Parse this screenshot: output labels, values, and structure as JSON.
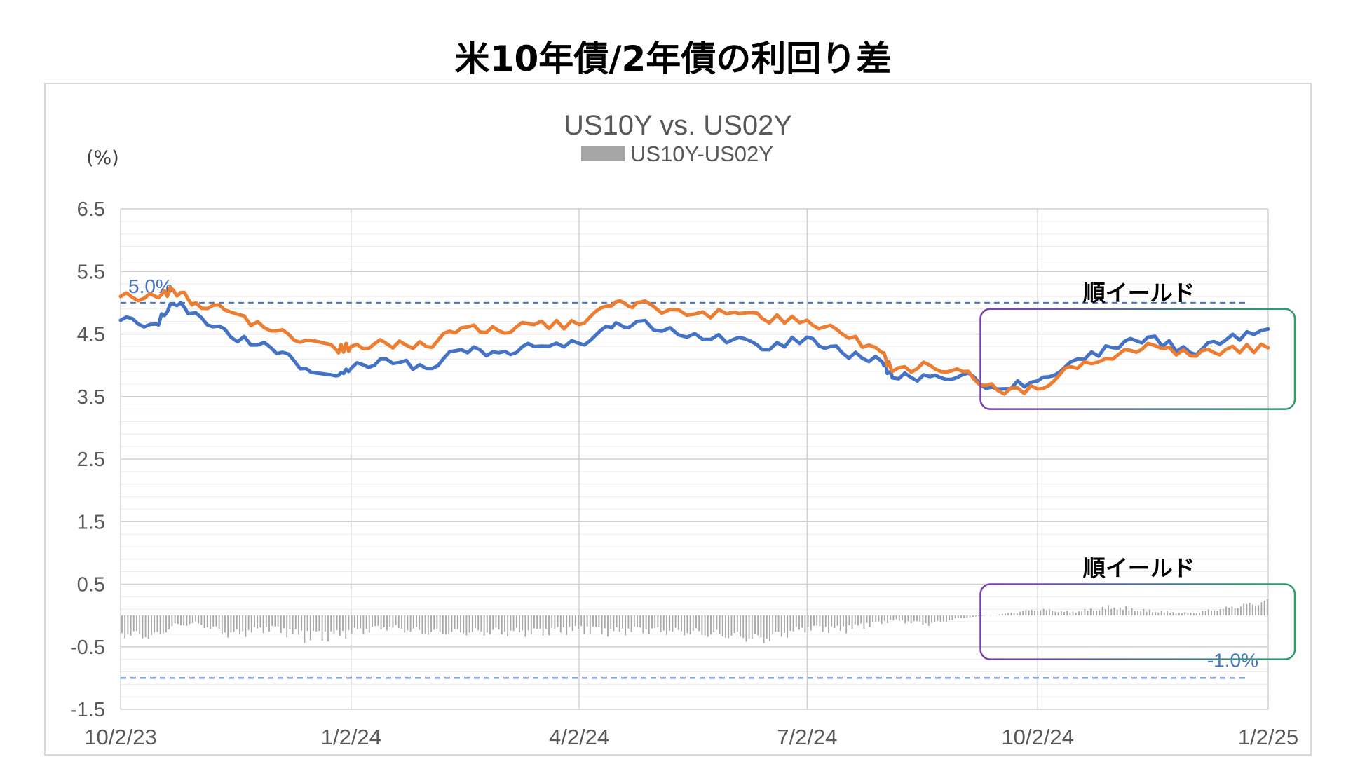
{
  "page_title": "米10年債/2年債の利回り差",
  "chart_data": {
    "type": "line",
    "title": "US10Y vs. US02Y",
    "y_unit": "(%)",
    "ylim": [
      -1.5,
      6.5
    ],
    "y_ticks": [
      "6.5",
      "5.5",
      "4.5",
      "3.5",
      "2.5",
      "1.5",
      "0.5",
      "-0.5",
      "-1.5"
    ],
    "y_tick_values": [
      6.5,
      5.5,
      4.5,
      3.5,
      2.5,
      1.5,
      0.5,
      -0.5,
      -1.5
    ],
    "x_ticks": [
      "10/2/23",
      "1/2/24",
      "4/2/24",
      "7/2/24",
      "10/2/24",
      "1/2/25"
    ],
    "x_tick_values": [
      "2023-10-02",
      "2024-01-02",
      "2024-04-02",
      "2024-07-02",
      "2024-10-02",
      "2025-01-02"
    ],
    "x_range": [
      "2023-10-02",
      "2025-01-02"
    ],
    "grid": true,
    "legend_position": "top",
    "series": [
      {
        "key": "us10y",
        "color": "#4472c4",
        "x": [
          "2023-10-02",
          "2023-10-16",
          "2023-10-23",
          "2023-11-01",
          "2023-11-15",
          "2023-12-01",
          "2023-12-15",
          "2023-12-27",
          "2024-01-02",
          "2024-01-16",
          "2024-02-01",
          "2024-02-15",
          "2024-03-01",
          "2024-03-15",
          "2024-04-02",
          "2024-04-15",
          "2024-04-25",
          "2024-05-15",
          "2024-06-03",
          "2024-06-14",
          "2024-07-02",
          "2024-07-16",
          "2024-08-01",
          "2024-08-05",
          "2024-08-20",
          "2024-09-02",
          "2024-09-16",
          "2024-10-02",
          "2024-10-15",
          "2024-11-01",
          "2024-11-15",
          "2024-12-02",
          "2024-12-16",
          "2025-01-02"
        ],
        "values": [
          4.72,
          4.66,
          4.98,
          4.84,
          4.45,
          4.28,
          3.95,
          3.83,
          3.95,
          4.1,
          3.95,
          4.25,
          4.2,
          4.3,
          4.35,
          4.6,
          4.7,
          4.45,
          4.42,
          4.25,
          4.45,
          4.2,
          4.05,
          3.8,
          3.82,
          3.85,
          3.62,
          3.75,
          4.05,
          4.28,
          4.45,
          4.2,
          4.4,
          4.58
        ]
      },
      {
        "key": "us02y",
        "color": "#ed7d31",
        "x": [
          "2023-10-02",
          "2023-10-16",
          "2023-10-23",
          "2023-11-01",
          "2023-11-15",
          "2023-12-01",
          "2023-12-15",
          "2023-12-27",
          "2024-01-02",
          "2024-01-16",
          "2024-02-01",
          "2024-02-15",
          "2024-03-01",
          "2024-03-15",
          "2024-04-02",
          "2024-04-15",
          "2024-04-25",
          "2024-05-15",
          "2024-06-03",
          "2024-06-14",
          "2024-07-02",
          "2024-07-16",
          "2024-08-01",
          "2024-08-05",
          "2024-08-20",
          "2024-09-02",
          "2024-09-16",
          "2024-10-02",
          "2024-10-15",
          "2024-11-01",
          "2024-11-15",
          "2024-12-02",
          "2024-12-16",
          "2025-01-02"
        ],
        "values": [
          5.1,
          5.1,
          5.2,
          5.0,
          4.85,
          4.55,
          4.4,
          4.25,
          4.3,
          4.35,
          4.3,
          4.6,
          4.55,
          4.65,
          4.65,
          4.95,
          5.0,
          4.8,
          4.85,
          4.75,
          4.72,
          4.5,
          4.2,
          3.9,
          4.0,
          3.9,
          3.6,
          3.62,
          3.98,
          4.1,
          4.35,
          4.15,
          4.25,
          4.28
        ]
      },
      {
        "key": "spread",
        "name": "US10Y-US02Y",
        "type": "bar",
        "color": "#a6a6a6",
        "x": [
          "2023-10-02",
          "2023-10-16",
          "2023-10-23",
          "2023-11-01",
          "2023-11-15",
          "2023-12-01",
          "2023-12-15",
          "2023-12-27",
          "2024-01-02",
          "2024-01-16",
          "2024-02-01",
          "2024-02-15",
          "2024-03-01",
          "2024-03-15",
          "2024-04-02",
          "2024-04-15",
          "2024-04-25",
          "2024-05-15",
          "2024-06-03",
          "2024-06-14",
          "2024-07-02",
          "2024-07-16",
          "2024-08-01",
          "2024-08-05",
          "2024-08-20",
          "2024-09-02",
          "2024-09-16",
          "2024-10-02",
          "2024-10-15",
          "2024-11-01",
          "2024-11-15",
          "2024-12-02",
          "2024-12-16",
          "2025-01-02"
        ],
        "values": [
          -0.38,
          -0.44,
          -0.22,
          -0.16,
          -0.4,
          -0.27,
          -0.45,
          -0.42,
          -0.35,
          -0.25,
          -0.35,
          -0.35,
          -0.35,
          -0.35,
          -0.3,
          -0.35,
          -0.3,
          -0.35,
          -0.43,
          -0.5,
          -0.27,
          -0.3,
          -0.15,
          -0.1,
          -0.18,
          -0.05,
          0.02,
          0.13,
          0.07,
          0.18,
          0.1,
          0.05,
          0.15,
          0.3
        ]
      }
    ],
    "reference_lines": [
      {
        "value": 5.0,
        "label": "5.0%",
        "color": "#4472c4"
      },
      {
        "value": -1.0,
        "label": "-1.0%",
        "color": "#4472c4"
      }
    ],
    "annotations": [
      {
        "text": "順イールド",
        "x_from": "2024-09-10",
        "x_to": "2025-01-02",
        "y_from": 3.3,
        "y_to": 4.9,
        "color": "#2e9e6b"
      },
      {
        "text": "順イールド",
        "x_from": "2024-09-10",
        "x_to": "2025-01-02",
        "y_from": -0.7,
        "y_to": 0.5,
        "color": "#2e9e6b"
      }
    ],
    "legend": [
      {
        "label": "US10Y-US02Y",
        "color": "#a6a6a6"
      }
    ]
  }
}
